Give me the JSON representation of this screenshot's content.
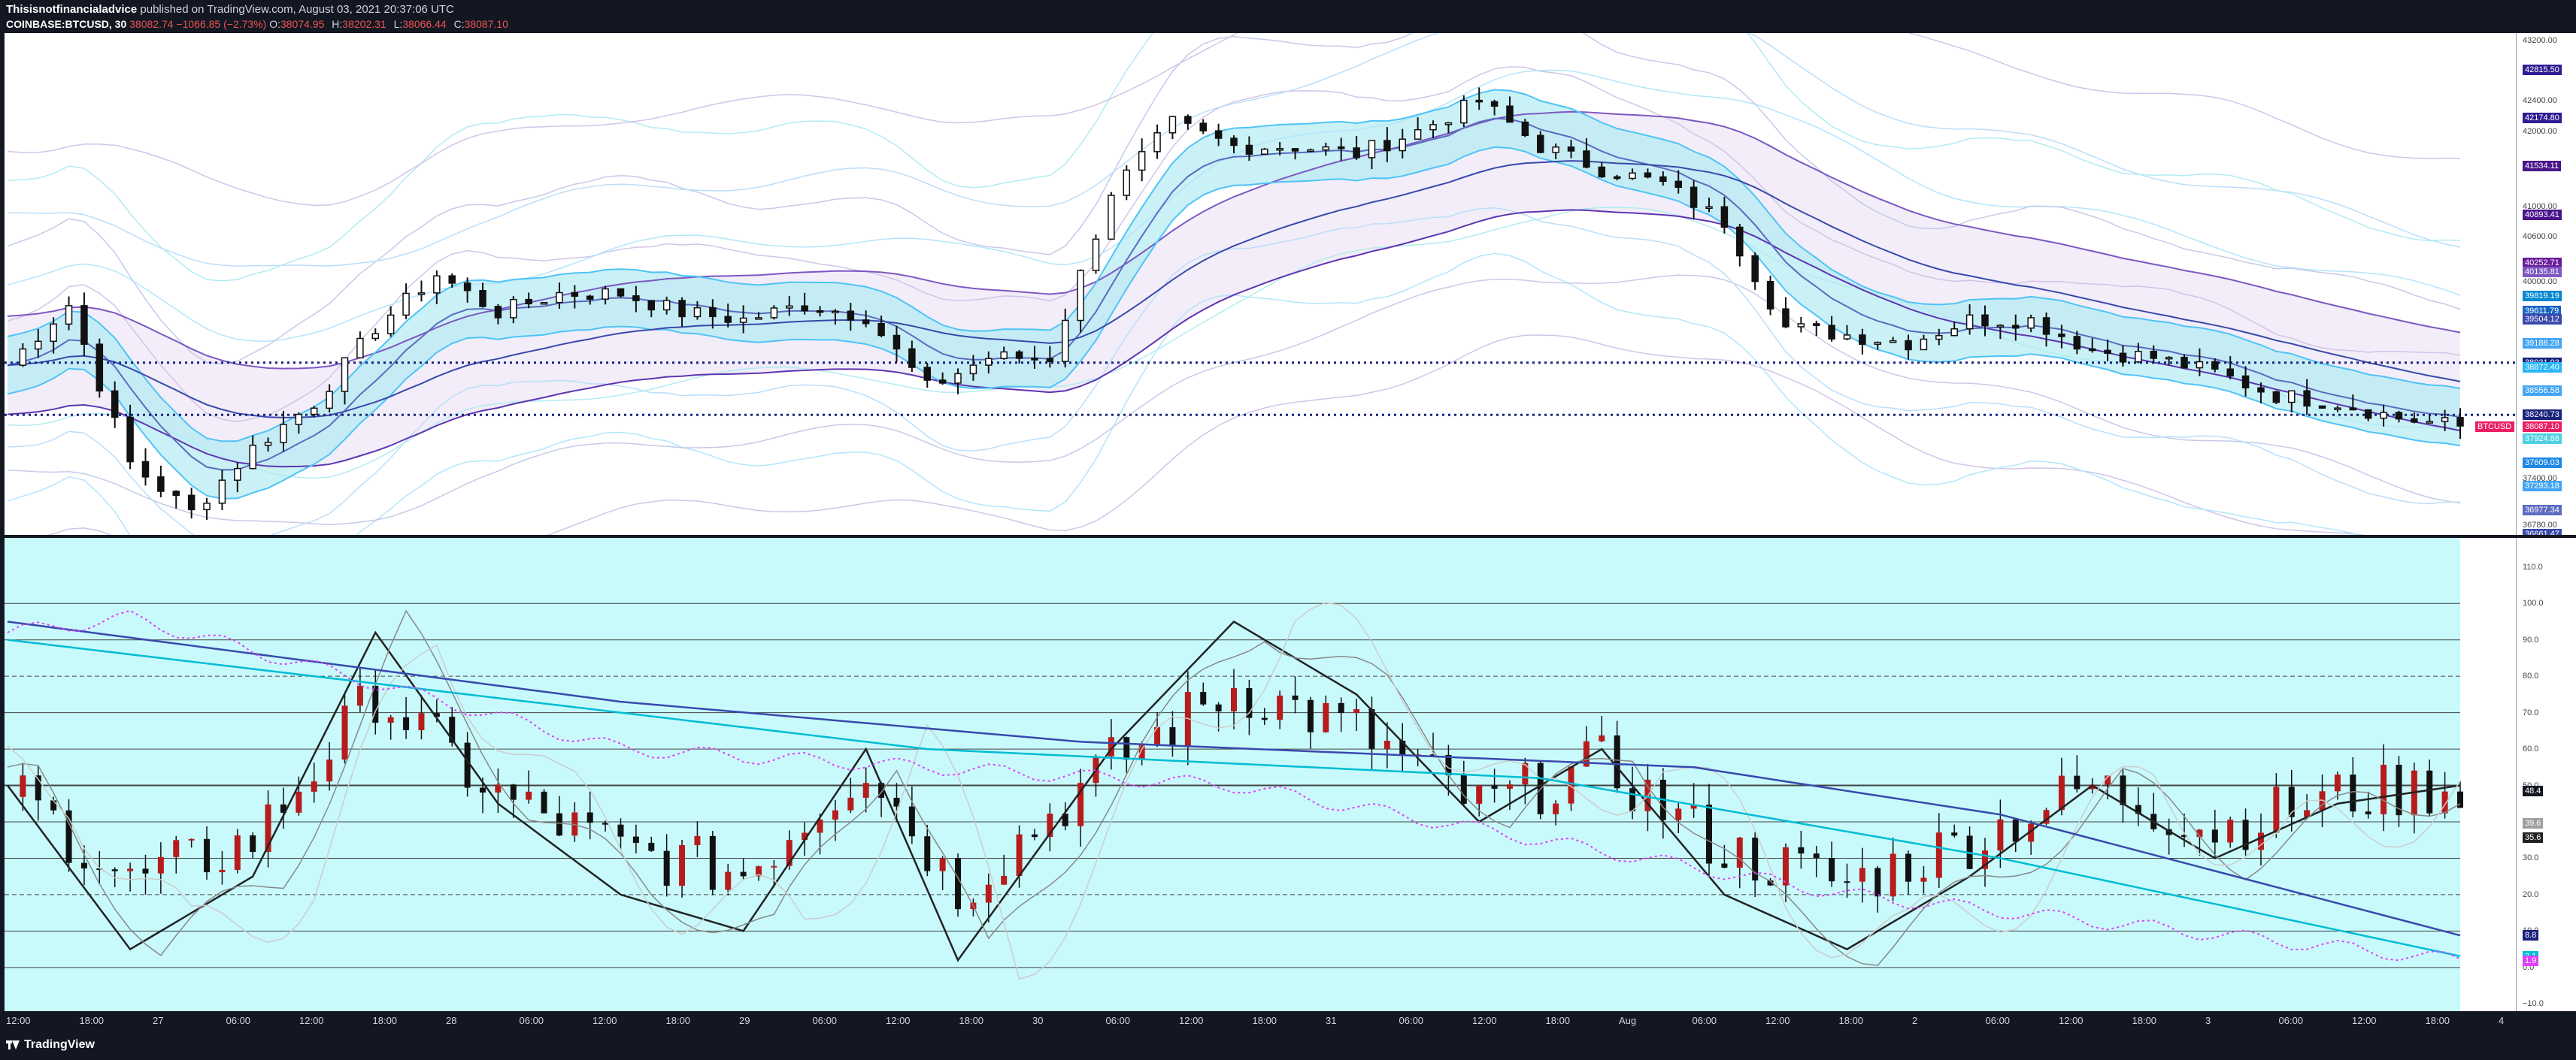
{
  "header": {
    "publisher": "Thisisnotfinancialadvice",
    "published_on": "published on TradingView.com, August 03, 2021 20:37:06 UTC",
    "symbol": "COINBASE:BTCUSD, 30",
    "last": "38082.74",
    "change": "−1066.85 (−2.73%)",
    "o_label": "O:",
    "o_value": "38074.95",
    "h_label": "H:",
    "h_value": "38202.31",
    "l_label": "L:",
    "l_value": "38066.44",
    "c_label": "C:",
    "c_value": "38087.10"
  },
  "price_axis": {
    "ticks": [
      "43200.00",
      "42400.00",
      "42000.00",
      "41000.00",
      "40600.00",
      "40000.00",
      "39600.00",
      "38200.00",
      "37400.00",
      "36780.00"
    ],
    "tags": [
      {
        "text": "42815.50",
        "color": "#311b92"
      },
      {
        "text": "42174.80",
        "color": "#311b92"
      },
      {
        "text": "41534.11",
        "color": "#4a148c"
      },
      {
        "text": "40893.41",
        "color": "#4a148c"
      },
      {
        "text": "40252.71",
        "color": "#6a1b9a"
      },
      {
        "text": "40135.81",
        "color": "#7e57c2"
      },
      {
        "text": "39819.19",
        "color": "#0288d1"
      },
      {
        "text": "39611.79",
        "color": "#1565c0"
      },
      {
        "text": "39504.12",
        "color": "#3949ab"
      },
      {
        "text": "39188.28",
        "color": "#42a5f5"
      },
      {
        "text": "38931.93",
        "color": "#1a237e"
      },
      {
        "text": "38872.40",
        "color": "#29b6f6"
      },
      {
        "text": "38556.58",
        "color": "#42a5f5"
      },
      {
        "text": "38240.73",
        "color": "#1a237e"
      },
      {
        "text": "38087.10",
        "color": "#e91e63"
      },
      {
        "text": "37924.88",
        "color": "#4dd0e1"
      },
      {
        "text": "37609.03",
        "color": "#1e88e5"
      },
      {
        "text": "37293.18",
        "color": "#42a5f5"
      },
      {
        "text": "36977.34",
        "color": "#5c6bc0"
      },
      {
        "text": "36661.47",
        "color": "#3949ab"
      }
    ],
    "symbol_tag": "BTCUSD"
  },
  "osc_axis": {
    "ticks": [
      "110.0",
      "100.0",
      "90.0",
      "80.0",
      "70.0",
      "60.0",
      "50.0",
      "40.0",
      "30.0",
      "20.0",
      "10.0",
      "0.0",
      "−10.0"
    ],
    "tags": [
      {
        "text": "48.4",
        "color": "#131722"
      },
      {
        "text": "39.6",
        "color": "#9e9e9e"
      },
      {
        "text": "35.6",
        "color": "#212121"
      },
      {
        "text": "8.8",
        "color": "#1a237e"
      },
      {
        "text": "3.1",
        "color": "#00bcd4"
      },
      {
        "text": "1.9",
        "color": "#e040fb"
      }
    ]
  },
  "time_axis": [
    "12:00",
    "18:00",
    "27",
    "06:00",
    "12:00",
    "18:00",
    "28",
    "06:00",
    "12:00",
    "18:00",
    "29",
    "06:00",
    "12:00",
    "18:00",
    "30",
    "06:00",
    "12:00",
    "18:00",
    "31",
    "06:00",
    "12:00",
    "18:00",
    "Aug",
    "06:00",
    "12:00",
    "18:00",
    "2",
    "06:00",
    "12:00",
    "18:00",
    "3",
    "06:00",
    "12:00",
    "18:00",
    "4"
  ],
  "footer": {
    "brand": "TradingView"
  },
  "chart_data": {
    "type": "line",
    "title": "COINBASE:BTCUSD, 30",
    "xlabel": "",
    "ylabel": "",
    "x_range": [
      "26 Jul 12:00",
      "4 Aug 00:00"
    ],
    "y_price_range": [
      36650,
      43300
    ],
    "y_osc_range": [
      -12,
      118
    ],
    "series": [
      {
        "name": "BTCUSD",
        "close_points": [
          [
            0,
            38900
          ],
          [
            4,
            39700
          ],
          [
            8,
            37600
          ],
          [
            12,
            36950
          ],
          [
            16,
            37800
          ],
          [
            20,
            38400
          ],
          [
            24,
            39400
          ],
          [
            28,
            40100
          ],
          [
            32,
            39600
          ],
          [
            36,
            39850
          ],
          [
            40,
            39850
          ],
          [
            44,
            39600
          ],
          [
            48,
            39500
          ],
          [
            52,
            39700
          ],
          [
            56,
            39550
          ],
          [
            60,
            38600
          ],
          [
            64,
            39000
          ],
          [
            68,
            39000
          ],
          [
            72,
            41200
          ],
          [
            76,
            42100
          ],
          [
            80,
            41800
          ],
          [
            84,
            41800
          ],
          [
            88,
            41700
          ],
          [
            92,
            42000
          ],
          [
            96,
            42400
          ],
          [
            100,
            41800
          ],
          [
            104,
            41500
          ],
          [
            108,
            41300
          ],
          [
            112,
            40800
          ],
          [
            116,
            39400
          ],
          [
            120,
            39300
          ],
          [
            124,
            39200
          ],
          [
            128,
            39500
          ],
          [
            132,
            39500
          ],
          [
            136,
            39100
          ],
          [
            140,
            39000
          ],
          [
            144,
            38800
          ],
          [
            148,
            38500
          ],
          [
            152,
            38400
          ],
          [
            156,
            38200
          ],
          [
            160,
            38087
          ]
        ]
      },
      {
        "name": "Stoch",
        "points": [
          [
            0,
            50
          ],
          [
            8,
            5
          ],
          [
            16,
            25
          ],
          [
            24,
            92
          ],
          [
            32,
            45
          ],
          [
            40,
            20
          ],
          [
            48,
            10
          ],
          [
            56,
            60
          ],
          [
            62,
            2
          ],
          [
            72,
            60
          ],
          [
            80,
            95
          ],
          [
            88,
            75
          ],
          [
            96,
            40
          ],
          [
            104,
            60
          ],
          [
            112,
            20
          ],
          [
            120,
            5
          ],
          [
            128,
            25
          ],
          [
            136,
            50
          ],
          [
            144,
            30
          ],
          [
            152,
            45
          ],
          [
            160,
            50
          ]
        ]
      },
      {
        "name": "MA",
        "points": [
          [
            0,
            95
          ],
          [
            40,
            73
          ],
          [
            70,
            62
          ],
          [
            110,
            55
          ],
          [
            130,
            42
          ],
          [
            160,
            8.8
          ]
        ]
      }
    ],
    "osc_levels": [
      100,
      90,
      80,
      70,
      60,
      50,
      40,
      30,
      20,
      10,
      0
    ],
    "grid": false
  }
}
